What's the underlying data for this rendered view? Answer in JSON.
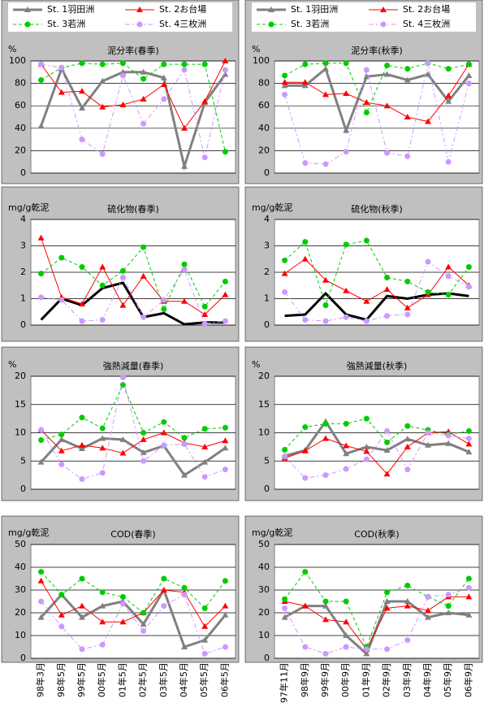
{
  "chart_data": [
    {
      "type": "line",
      "title": "泥分率(春季)",
      "ylabel": "%",
      "ylim": [
        0,
        100
      ],
      "yticks": [
        0,
        20,
        40,
        60,
        80,
        100
      ],
      "grid": true,
      "legend": "top",
      "series": [
        {
          "name": "St. 1羽田洲",
          "color": "#808080",
          "marker": "triangle",
          "line_style": "solid",
          "line_width": 3,
          "values": [
            42,
            93,
            58,
            82,
            90,
            90,
            85,
            6,
            63,
            88
          ]
        },
        {
          "name": "St. 2お台場",
          "color": "#ff0000",
          "marker": "triangle",
          "line_style": "solid",
          "line_width": 1,
          "values": [
            97,
            72,
            73,
            59,
            61,
            66,
            79,
            40,
            64,
            100
          ]
        },
        {
          "name": "St. 3若洲",
          "color": "#00cc00",
          "marker": "circle",
          "line_style": "dashed",
          "line_width": 1,
          "values": [
            83,
            94,
            98,
            97,
            98,
            84,
            97,
            97,
            97,
            19
          ]
        },
        {
          "name": "St. 4三枚洲",
          "color": "#cc99ff",
          "marker": "circle",
          "line_style": "dashdot",
          "line_width": 1,
          "values": [
            97,
            94,
            30,
            17,
            87,
            44,
            66,
            92,
            14,
            92
          ]
        }
      ]
    },
    {
      "type": "line",
      "title": "泥分率(秋季)",
      "ylabel": "%",
      "ylim": [
        0,
        100
      ],
      "yticks": [
        0,
        20,
        40,
        60,
        80,
        100
      ],
      "grid": true,
      "legend": "top",
      "series": [
        {
          "name": "St. 1羽田洲",
          "color": "#808080",
          "marker": "triangle",
          "line_style": "solid",
          "line_width": 3,
          "values": [
            78,
            78,
            93,
            38,
            86,
            88,
            83,
            88,
            64,
            87
          ]
        },
        {
          "name": "St. 2お台場",
          "color": "#ff0000",
          "marker": "triangle",
          "line_style": "solid",
          "line_width": 1,
          "values": [
            81,
            81,
            70,
            71,
            63,
            60,
            50,
            46,
            69,
            97
          ]
        },
        {
          "name": "St. 3若洲",
          "color": "#00cc00",
          "marker": "circle",
          "line_style": "dashed",
          "line_width": 1,
          "values": [
            87,
            97,
            98,
            98,
            54,
            96,
            93,
            98,
            93,
            97
          ]
        },
        {
          "name": "St. 4三枚洲",
          "color": "#cc99ff",
          "marker": "circle",
          "line_style": "dashdot",
          "line_width": 1,
          "values": [
            70,
            9,
            8,
            19,
            92,
            18,
            15,
            98,
            10,
            80
          ]
        }
      ]
    },
    {
      "type": "line",
      "title": "硫化物(春季)",
      "ylabel": "mg/g乾泥",
      "ylim": [
        0,
        4
      ],
      "yticks": [
        0,
        1,
        2,
        3,
        4
      ],
      "grid": true,
      "series": [
        {
          "color": "#000000",
          "marker": "none",
          "line_style": "solid",
          "line_width": 3,
          "values": [
            0.2,
            1.0,
            0.75,
            1.4,
            1.6,
            0.3,
            0.45,
            0.03,
            0.1,
            0.1
          ]
        },
        {
          "color": "#ff0000",
          "marker": "triangle",
          "line_style": "solid",
          "line_width": 1,
          "values": [
            3.3,
            1.05,
            0.8,
            2.2,
            0.75,
            1.85,
            0.9,
            0.9,
            0.4,
            1.15
          ]
        },
        {
          "color": "#00cc00",
          "marker": "circle",
          "line_style": "dashed",
          "line_width": 1,
          "values": [
            1.95,
            2.55,
            2.2,
            1.5,
            2.05,
            2.95,
            0.6,
            2.3,
            0.7,
            1.65
          ]
        },
        {
          "color": "#cc99ff",
          "marker": "circle",
          "line_style": "dashdot",
          "line_width": 1,
          "values": [
            1.05,
            0.95,
            0.15,
            0.2,
            1.8,
            0.3,
            0.95,
            2.1,
            0.05,
            0.15
          ]
        }
      ]
    },
    {
      "type": "line",
      "title": "硫化物(秋季)",
      "ylabel": "mg/g乾泥",
      "ylim": [
        0,
        4
      ],
      "yticks": [
        0,
        1,
        2,
        3,
        4
      ],
      "grid": true,
      "series": [
        {
          "color": "#000000",
          "marker": "none",
          "line_style": "solid",
          "line_width": 3,
          "values": [
            0.35,
            0.4,
            1.2,
            0.4,
            0.2,
            1.1,
            1.0,
            1.15,
            1.2,
            1.1
          ]
        },
        {
          "color": "#ff0000",
          "marker": "triangle",
          "line_style": "solid",
          "line_width": 1,
          "values": [
            1.95,
            2.5,
            1.7,
            1.3,
            0.9,
            1.35,
            0.65,
            1.15,
            2.2,
            1.5
          ]
        },
        {
          "color": "#00cc00",
          "marker": "circle",
          "line_style": "dashed",
          "line_width": 1,
          "values": [
            2.45,
            3.15,
            0.75,
            3.05,
            3.2,
            1.8,
            1.65,
            1.25,
            1.15,
            2.2
          ]
        },
        {
          "color": "#cc99ff",
          "marker": "circle",
          "line_style": "dashdot",
          "line_width": 1,
          "values": [
            1.25,
            0.2,
            0.15,
            0.3,
            0.15,
            0.35,
            0.4,
            2.4,
            1.85,
            1.45
          ]
        }
      ]
    },
    {
      "type": "line",
      "title": "強熱減量(春季)",
      "ylabel": "%",
      "ylim": [
        0,
        20
      ],
      "yticks": [
        0,
        5,
        10,
        15,
        20
      ],
      "grid": true,
      "series": [
        {
          "color": "#808080",
          "marker": "triangle",
          "line_style": "solid",
          "line_width": 3,
          "values": [
            4.8,
            8.8,
            7.2,
            9.0,
            8.8,
            6.5,
            7.7,
            2.5,
            4.8,
            7.3
          ]
        },
        {
          "color": "#ff0000",
          "marker": "triangle",
          "line_style": "solid",
          "line_width": 1,
          "values": [
            10.5,
            6.8,
            7.8,
            7.3,
            6.4,
            8.8,
            10.0,
            8.2,
            7.5,
            8.6
          ]
        },
        {
          "color": "#00cc00",
          "marker": "circle",
          "line_style": "dashed",
          "line_width": 1,
          "values": [
            8.7,
            9.7,
            12.7,
            10.8,
            18.5,
            10.0,
            11.9,
            9.1,
            10.7,
            10.9
          ]
        },
        {
          "color": "#cc99ff",
          "marker": "circle",
          "line_style": "dashdot",
          "line_width": 1,
          "values": [
            10.5,
            4.4,
            1.8,
            2.9,
            19.8,
            5.0,
            7.8,
            8.0,
            2.2,
            3.5
          ]
        }
      ]
    },
    {
      "type": "line",
      "title": "強熱減量(秋季)",
      "ylabel": "%",
      "ylim": [
        0,
        20
      ],
      "yticks": [
        0,
        5,
        10,
        15,
        20
      ],
      "grid": true,
      "series": [
        {
          "color": "#808080",
          "marker": "triangle",
          "line_style": "solid",
          "line_width": 3,
          "values": [
            5.9,
            6.9,
            12.0,
            6.3,
            7.5,
            6.9,
            8.9,
            7.8,
            8.1,
            6.6
          ]
        },
        {
          "color": "#ff0000",
          "marker": "triangle",
          "line_style": "solid",
          "line_width": 1,
          "values": [
            5.5,
            6.8,
            9.0,
            7.7,
            6.7,
            2.7,
            7.5,
            10.0,
            10.2,
            8.0
          ]
        },
        {
          "color": "#00cc00",
          "marker": "circle",
          "line_style": "dashed",
          "line_width": 1,
          "values": [
            7.0,
            11.0,
            11.6,
            11.6,
            12.5,
            8.3,
            11.2,
            10.5,
            9.7,
            10.3
          ]
        },
        {
          "color": "#cc99ff",
          "marker": "circle",
          "line_style": "dashdot",
          "line_width": 1,
          "values": [
            5.8,
            2.0,
            2.5,
            3.6,
            5.3,
            10.3,
            3.5,
            10.0,
            9.5,
            9.0
          ]
        }
      ]
    },
    {
      "type": "line",
      "title": "COD(春季)",
      "ylabel": "mg/g乾泥",
      "ylim": [
        0,
        50
      ],
      "yticks": [
        0,
        10,
        20,
        30,
        40,
        50
      ],
      "grid": true,
      "categories": [
        "98年3月",
        "98年5月",
        "99年5月",
        "00年5月",
        "01年5月",
        "02年5月",
        "03年5月",
        "04年5月",
        "05年5月",
        "06年5月"
      ],
      "series": [
        {
          "color": "#808080",
          "marker": "triangle",
          "line_style": "solid",
          "line_width": 3,
          "values": [
            18,
            28,
            18,
            23,
            25,
            15,
            30,
            5,
            8,
            19
          ]
        },
        {
          "color": "#ff0000",
          "marker": "triangle",
          "line_style": "solid",
          "line_width": 1,
          "values": [
            34,
            19,
            23,
            16,
            16,
            20,
            30,
            29,
            14,
            23
          ]
        },
        {
          "color": "#00cc00",
          "marker": "circle",
          "line_style": "dashed",
          "line_width": 1,
          "values": [
            38,
            28,
            35,
            29,
            27,
            20,
            35,
            31,
            22,
            34
          ]
        },
        {
          "color": "#cc99ff",
          "marker": "circle",
          "line_style": "dashdot",
          "line_width": 1,
          "values": [
            25,
            14,
            4,
            6,
            24,
            12,
            23,
            28,
            2,
            5
          ]
        }
      ]
    },
    {
      "type": "line",
      "title": "COD(秋季)",
      "ylabel": "mg/g乾泥",
      "ylim": [
        0,
        50
      ],
      "yticks": [
        0,
        10,
        20,
        30,
        40,
        50
      ],
      "grid": true,
      "categories": [
        "97年11月",
        "98年9月",
        "99年9月",
        "00年9月",
        "01年9月",
        "02年9月",
        "03年9月",
        "04年9月",
        "05年9月",
        "06年9月"
      ],
      "series": [
        {
          "color": "#808080",
          "marker": "triangle",
          "line_style": "solid",
          "line_width": 3,
          "values": [
            18,
            23,
            23,
            10,
            2,
            25,
            25,
            18,
            20,
            19
          ]
        },
        {
          "color": "#ff0000",
          "marker": "triangle",
          "line_style": "solid",
          "line_width": 1,
          "values": [
            25,
            23,
            17,
            16,
            4,
            22,
            23,
            21,
            27,
            27
          ]
        },
        {
          "color": "#00cc00",
          "marker": "circle",
          "line_style": "dashed",
          "line_width": 1,
          "values": [
            26,
            38,
            25,
            25,
            5,
            29,
            32,
            27,
            23,
            35
          ]
        },
        {
          "color": "#cc99ff",
          "marker": "circle",
          "line_style": "dashdot",
          "line_width": 1,
          "values": [
            22,
            5,
            2,
            5,
            4,
            4,
            8,
            27,
            28,
            31
          ]
        }
      ]
    }
  ]
}
